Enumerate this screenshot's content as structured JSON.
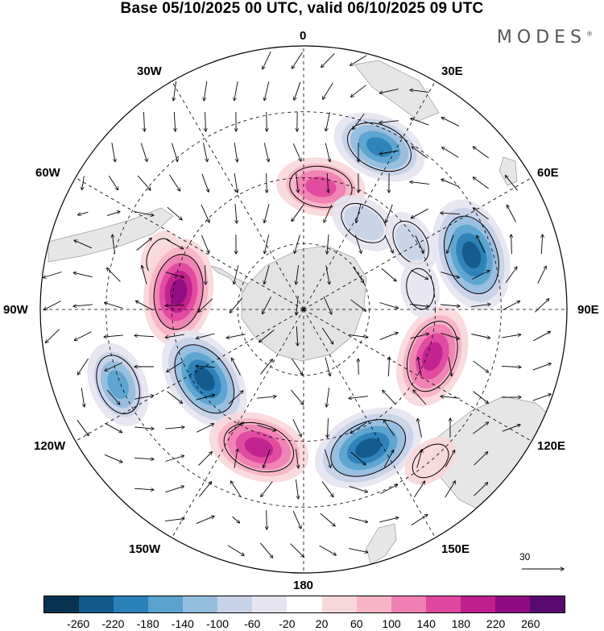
{
  "title": "Base 05/10/2025 00 UTC, valid 06/10/2025 09 UTC",
  "brand": "MODES",
  "brand_mark": "®",
  "longitude_labels": {
    "n0": "0",
    "e30": "30E",
    "e60": "60E",
    "e90": "90E",
    "e120": "120E",
    "e150": "150E",
    "s180": "180",
    "w150": "150W",
    "w120": "120W",
    "w90": "90W",
    "w60": "60W",
    "w30": "30W"
  },
  "reference_vector": "30",
  "colorbar": {
    "colors": [
      "#08324f",
      "#12598a",
      "#2a80b9",
      "#5aa3cf",
      "#95bddc",
      "#c7d2e8",
      "#e6e4f0",
      "#ffffff",
      "#f8d7da",
      "#f6b4c6",
      "#ee7fb3",
      "#e0479e",
      "#c01f8c",
      "#8e0c82",
      "#5a0a6e"
    ],
    "labels": [
      "-260",
      "-220",
      "-180",
      "-140",
      "-100",
      "-60",
      "-20",
      "20",
      "60",
      "100",
      "140",
      "180",
      "220",
      "260"
    ]
  },
  "anomalies": [
    {
      "lon": 25,
      "r": 0.68,
      "value": -185
    },
    {
      "lon": 8,
      "r": 0.47,
      "value": 160
    },
    {
      "lon": 35,
      "r": 0.4,
      "value": -90
    },
    {
      "lon": 58,
      "r": 0.48,
      "value": -70
    },
    {
      "lon": -70,
      "r": 0.58,
      "value": 25
    },
    {
      "lon": -82,
      "r": 0.48,
      "value": 230
    },
    {
      "lon": -112,
      "r": 0.76,
      "value": -150
    },
    {
      "lon": -125,
      "r": 0.46,
      "value": -235
    },
    {
      "lon": -162,
      "r": 0.55,
      "value": 210
    },
    {
      "lon": 155,
      "r": 0.58,
      "value": -250
    },
    {
      "lon": 110,
      "r": 0.52,
      "value": 215
    },
    {
      "lon": 72,
      "r": 0.67,
      "value": -255
    },
    {
      "lon": 80,
      "r": 0.45,
      "value": -40
    },
    {
      "lon": 140,
      "r": 0.75,
      "value": 40
    }
  ]
}
